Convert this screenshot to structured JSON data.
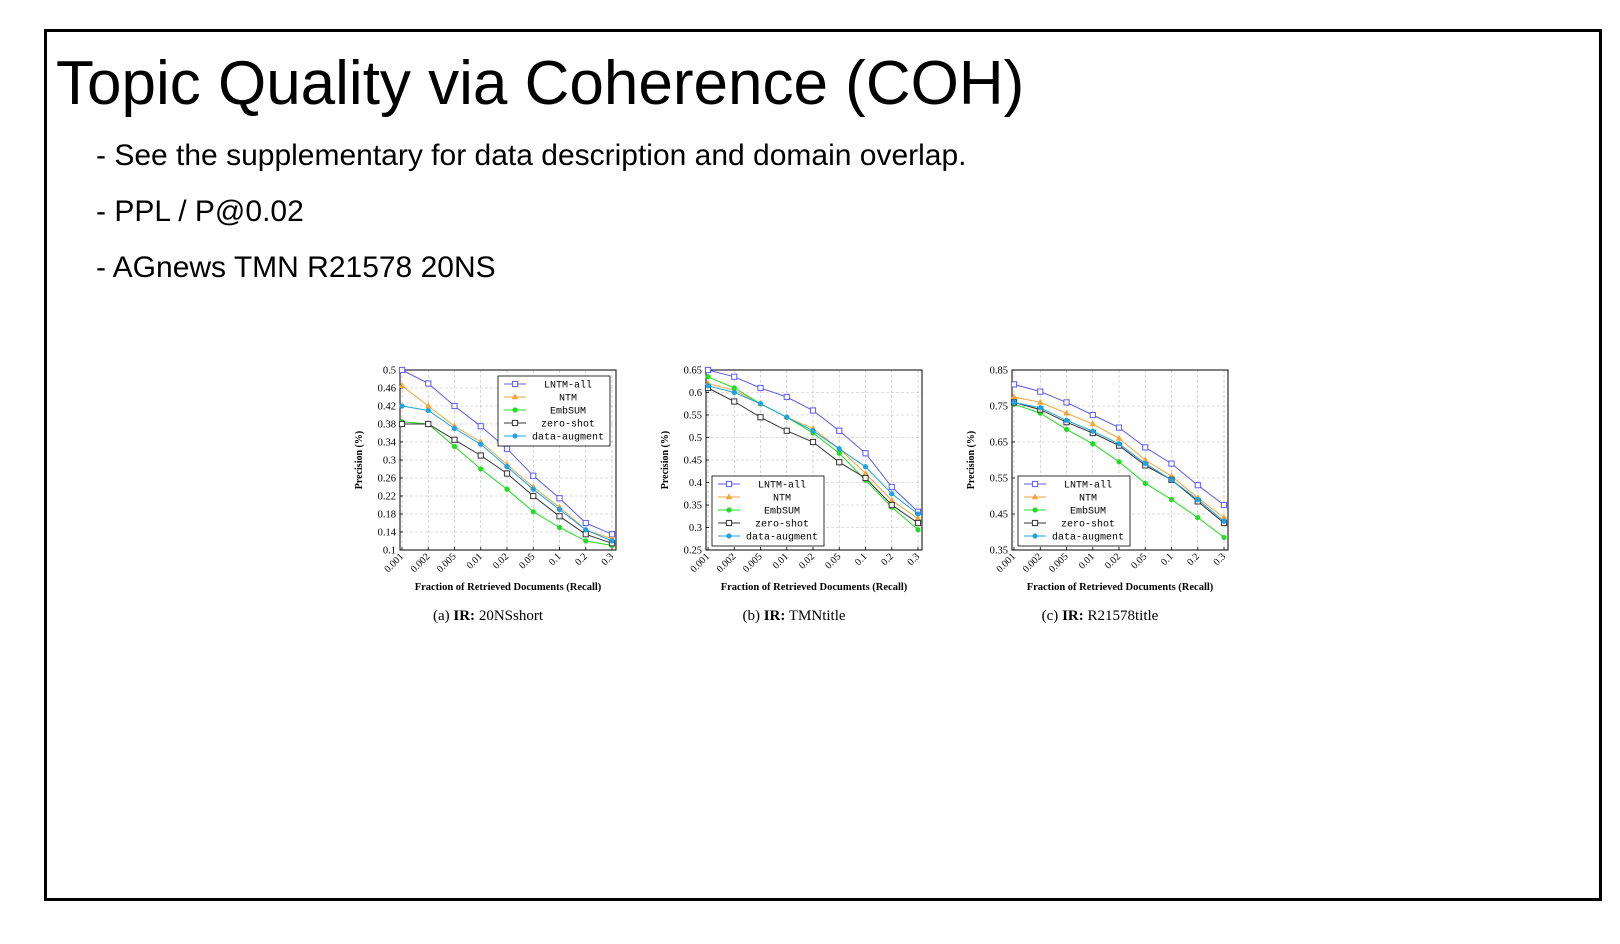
{
  "slide": {
    "title": "Topic Quality via Coherence (COH)",
    "bullets": [
      "- See the supplementary for data description and domain overlap.",
      "- PPL / P@0.02",
      "- AGnews TMN R21578 20NS"
    ]
  },
  "series_colors": {
    "LNTM-all": "#5b5bf0",
    "NTM": "#f3a53b",
    "EmbSUM": "#22dd22",
    "zero-shot": "#333333",
    "data-augment": "#1ca4e6"
  },
  "chart_data": [
    {
      "type": "line",
      "caption_prefix": "(a)",
      "caption_bold": "IR:",
      "caption_text": "20NSshort",
      "xlabel": "Fraction of Retrieved Documents (Recall)",
      "ylabel": "Precision (%)",
      "categories": [
        "0.001",
        "0.002",
        "0.005",
        "0.01",
        "0.02",
        "0.05",
        "0.1",
        "0.2",
        "0.3"
      ],
      "ylim": [
        0.1,
        0.5
      ],
      "yticks": [
        "0.1",
        "0.14",
        "0.18",
        "0.22",
        "0.26",
        "0.3",
        "0.34",
        "0.38",
        "0.42",
        "0.46",
        "0.5"
      ],
      "grid": true,
      "legend_position": "top-right",
      "series": [
        {
          "name": "LNTM-all",
          "values": [
            0.5,
            0.47,
            0.42,
            0.375,
            0.325,
            0.265,
            0.215,
            0.16,
            0.135
          ]
        },
        {
          "name": "NTM",
          "values": [
            0.465,
            0.42,
            0.375,
            0.34,
            0.29,
            0.24,
            0.195,
            0.145,
            0.125
          ]
        },
        {
          "name": "EmbSUM",
          "values": [
            0.385,
            0.38,
            0.33,
            0.28,
            0.235,
            0.185,
            0.15,
            0.12,
            0.11
          ]
        },
        {
          "name": "zero-shot",
          "values": [
            0.38,
            0.38,
            0.345,
            0.31,
            0.27,
            0.22,
            0.175,
            0.135,
            0.115
          ]
        },
        {
          "name": "data-augment",
          "values": [
            0.42,
            0.41,
            0.37,
            0.335,
            0.285,
            0.235,
            0.19,
            0.145,
            0.12
          ]
        }
      ]
    },
    {
      "type": "line",
      "caption_prefix": "(b)",
      "caption_bold": "IR:",
      "caption_text": "TMNtitle",
      "xlabel": "Fraction of Retrieved Documents (Recall)",
      "ylabel": "Precision (%)",
      "categories": [
        "0.001",
        "0.002",
        "0.005",
        "0.01",
        "0.02",
        "0.05",
        "0.1",
        "0.2",
        "0.3"
      ],
      "ylim": [
        0.25,
        0.65
      ],
      "yticks": [
        "0.25",
        "0.3",
        "0.35",
        "0.4",
        "0.45",
        "0.5",
        "0.55",
        "0.6",
        "0.65"
      ],
      "grid": true,
      "legend_position": "bottom-left",
      "series": [
        {
          "name": "LNTM-all",
          "values": [
            0.65,
            0.635,
            0.61,
            0.59,
            0.56,
            0.515,
            0.465,
            0.39,
            0.335
          ]
        },
        {
          "name": "NTM",
          "values": [
            0.62,
            0.605,
            0.575,
            0.545,
            0.52,
            0.475,
            0.42,
            0.36,
            0.32
          ]
        },
        {
          "name": "EmbSUM",
          "values": [
            0.635,
            0.61,
            0.575,
            0.545,
            0.51,
            0.465,
            0.405,
            0.345,
            0.295
          ]
        },
        {
          "name": "zero-shot",
          "values": [
            0.61,
            0.58,
            0.545,
            0.515,
            0.49,
            0.445,
            0.41,
            0.35,
            0.31
          ]
        },
        {
          "name": "data-augment",
          "values": [
            0.615,
            0.6,
            0.575,
            0.545,
            0.515,
            0.475,
            0.435,
            0.375,
            0.33
          ]
        }
      ]
    },
    {
      "type": "line",
      "caption_prefix": "(c)",
      "caption_bold": "IR:",
      "caption_text": "R21578title",
      "xlabel": "Fraction of Retrieved Documents (Recall)",
      "ylabel": "Precision (%)",
      "categories": [
        "0.001",
        "0.002",
        "0.005",
        "0.01",
        "0.02",
        "0.05",
        "0.1",
        "0.2",
        "0.3"
      ],
      "ylim": [
        0.35,
        0.85
      ],
      "yticks": [
        "0.35",
        "0.45",
        "0.55",
        "0.65",
        "0.75",
        "0.85"
      ],
      "grid": true,
      "legend_position": "bottom-left",
      "series": [
        {
          "name": "LNTM-all",
          "values": [
            0.81,
            0.79,
            0.76,
            0.725,
            0.69,
            0.635,
            0.59,
            0.53,
            0.475
          ]
        },
        {
          "name": "NTM",
          "values": [
            0.775,
            0.76,
            0.73,
            0.7,
            0.66,
            0.6,
            0.555,
            0.495,
            0.44
          ]
        },
        {
          "name": "EmbSUM",
          "values": [
            0.755,
            0.73,
            0.685,
            0.645,
            0.595,
            0.535,
            0.49,
            0.44,
            0.385
          ]
        },
        {
          "name": "zero-shot",
          "values": [
            0.76,
            0.74,
            0.705,
            0.675,
            0.64,
            0.585,
            0.545,
            0.485,
            0.425
          ]
        },
        {
          "name": "data-augment",
          "values": [
            0.76,
            0.745,
            0.71,
            0.68,
            0.645,
            0.59,
            0.545,
            0.49,
            0.43
          ]
        }
      ]
    }
  ]
}
